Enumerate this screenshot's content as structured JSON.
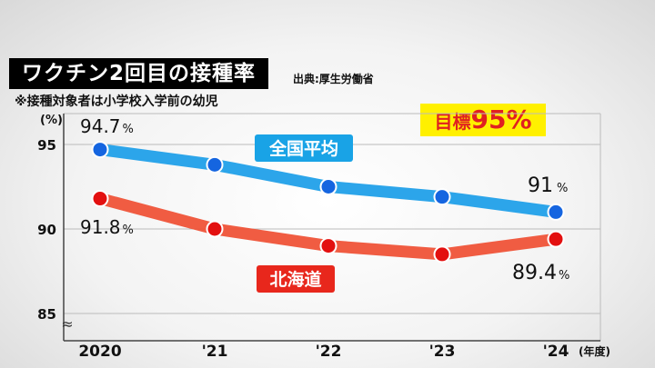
{
  "title": "ワクチン2回目の接種率",
  "source": "出典:厚生労働省",
  "note": "※接種対象者は小学校入学前の幼児",
  "goal": {
    "label": "目標",
    "value": "95%"
  },
  "chart_data": {
    "type": "line",
    "ylabel": "(%)",
    "xlabel": "(年度)",
    "categories": [
      "2020",
      "'21",
      "'22",
      "'23",
      "'24"
    ],
    "yticks": [
      85,
      90,
      95
    ],
    "ylim": [
      85,
      97
    ],
    "axis_break": "≈",
    "grid": true,
    "series": [
      {
        "name": "全国平均",
        "color": "#1a9de8",
        "values": [
          94.7,
          93.8,
          92.5,
          91.9,
          91.0
        ],
        "labels": [
          {
            "index": 0,
            "value": "94.7",
            "unit": "%"
          },
          {
            "index": 4,
            "value": "91",
            "unit": "%"
          }
        ]
      },
      {
        "name": "北海道",
        "color": "#ef4e32",
        "values": [
          91.8,
          90.0,
          89.0,
          88.5,
          89.4
        ],
        "labels": [
          {
            "index": 0,
            "value": "91.8",
            "unit": "%"
          },
          {
            "index": 4,
            "value": "89.4",
            "unit": "%"
          }
        ]
      }
    ]
  }
}
